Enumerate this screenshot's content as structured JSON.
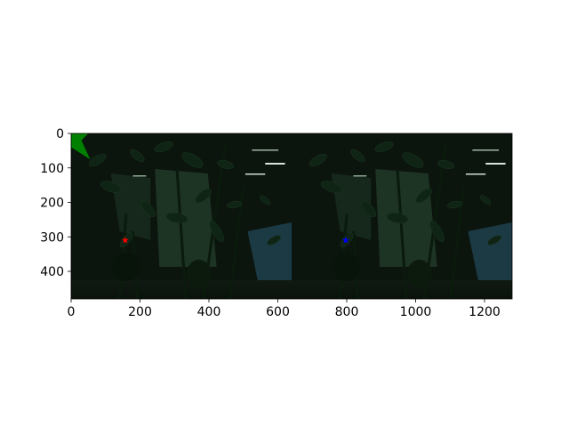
{
  "chart_data": {
    "type": "image",
    "title": "",
    "xlabel": "",
    "ylabel": "",
    "image": {
      "width": 1280,
      "height": 480,
      "panels": 2,
      "panel_width": 640,
      "content": "dark greenish indoor plant scene, same view repeated twice side by side"
    },
    "xlim": [
      0,
      1280
    ],
    "ylim": [
      480,
      0
    ],
    "x_ticks": [
      0,
      200,
      400,
      600,
      800,
      1000,
      1200
    ],
    "x_tick_labels": [
      "0",
      "200",
      "400",
      "600",
      "800",
      "1000",
      "1200"
    ],
    "y_ticks": [
      0,
      100,
      200,
      300,
      400
    ],
    "y_tick_labels": [
      "0",
      "100",
      "200",
      "300",
      "400"
    ],
    "markers": [
      {
        "x": 157,
        "y": 310,
        "shape": "star",
        "color": "#ff0000"
      },
      {
        "x": 797,
        "y": 310,
        "shape": "star",
        "color": "#0000ff"
      }
    ],
    "overlay_polygon": {
      "color": "#008000",
      "points": [
        [
          0,
          0
        ],
        [
          50,
          0
        ],
        [
          30,
          20
        ],
        [
          55,
          75
        ],
        [
          0,
          40
        ]
      ]
    }
  }
}
